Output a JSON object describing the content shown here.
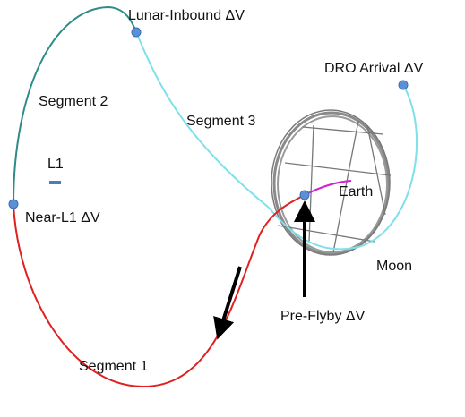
{
  "labels": [
    "Lunar-Inbound ΔV",
    "DRO Arrival ΔV",
    "Segment 2",
    "Segment 3",
    "L1",
    "Near-L1 ΔV",
    "Earth",
    "Moon",
    "Pre-Flyby ΔV",
    "Segment 1"
  ]
}
